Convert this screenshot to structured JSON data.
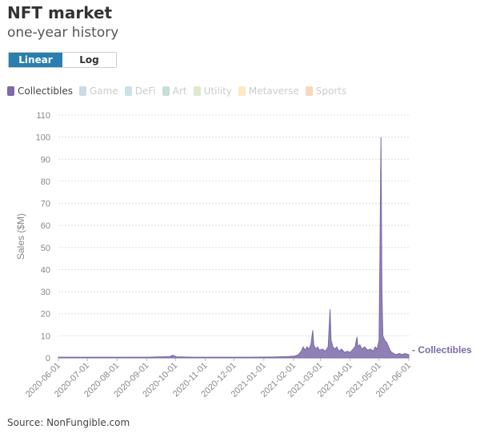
{
  "header": {
    "title": "NFT market",
    "subtitle": "one-year history"
  },
  "scale_toggle": {
    "options": [
      "Linear",
      "Log"
    ],
    "selected": "Linear"
  },
  "source": "Source: NonFungible.com",
  "chart_data": {
    "type": "area",
    "title": "NFT market",
    "subtitle": "one-year history",
    "ylabel": "Sales ($M)",
    "xlabel": "",
    "ylim": [
      0,
      110
    ],
    "yticks": [
      0,
      10,
      20,
      30,
      40,
      50,
      60,
      70,
      80,
      90,
      100,
      110
    ],
    "xlim": [
      "2020-06-01",
      "2021-06-01"
    ],
    "xticks": [
      "2020-06-01",
      "2020-07-01",
      "2020-08-01",
      "2020-09-01",
      "2020-10-01",
      "2020-11-01",
      "2020-12-01",
      "2021-01-01",
      "2021-02-01",
      "2021-03-01",
      "2021-04-01",
      "2021-05-01",
      "2021-06-01"
    ],
    "grid": true,
    "legend": {
      "placement": "top-left",
      "entries": [
        {
          "name": "Collectibles",
          "color": "#7b6aa8",
          "active": true
        },
        {
          "name": "Game",
          "color": "#c9dbe8",
          "active": false
        },
        {
          "name": "DeFi",
          "color": "#c9e3e6",
          "active": false
        },
        {
          "name": "Art",
          "color": "#c6dfd8",
          "active": false
        },
        {
          "name": "Utility",
          "color": "#dfe9d0",
          "active": false
        },
        {
          "name": "Metaverse",
          "color": "#fbe9c4",
          "active": false
        },
        {
          "name": "Sports",
          "color": "#f8d8bd",
          "active": false
        }
      ]
    },
    "series": [
      {
        "name": "Collectibles",
        "color": "#7b6aa8",
        "points": [
          [
            "2020-06-01",
            0.3
          ],
          [
            "2020-07-01",
            0.3
          ],
          [
            "2020-08-01",
            0.3
          ],
          [
            "2020-09-01",
            0.3
          ],
          [
            "2020-09-25",
            0.6
          ],
          [
            "2020-09-28",
            1.2
          ],
          [
            "2020-10-02",
            0.5
          ],
          [
            "2020-10-20",
            0.3
          ],
          [
            "2020-11-15",
            0.3
          ],
          [
            "2020-12-15",
            0.3
          ],
          [
            "2021-01-10",
            0.4
          ],
          [
            "2021-01-25",
            0.6
          ],
          [
            "2021-02-02",
            0.8
          ],
          [
            "2021-02-06",
            1.5
          ],
          [
            "2021-02-09",
            3
          ],
          [
            "2021-02-11",
            5
          ],
          [
            "2021-02-13",
            3.5
          ],
          [
            "2021-02-15",
            5
          ],
          [
            "2021-02-17",
            4
          ],
          [
            "2021-02-19",
            6
          ],
          [
            "2021-02-21",
            12.5
          ],
          [
            "2021-02-22",
            6
          ],
          [
            "2021-02-24",
            4
          ],
          [
            "2021-02-26",
            5
          ],
          [
            "2021-02-28",
            3.5
          ],
          [
            "2021-03-03",
            4
          ],
          [
            "2021-03-06",
            3
          ],
          [
            "2021-03-09",
            5
          ],
          [
            "2021-03-11",
            22
          ],
          [
            "2021-03-12",
            8
          ],
          [
            "2021-03-14",
            5
          ],
          [
            "2021-03-16",
            4
          ],
          [
            "2021-03-18",
            5
          ],
          [
            "2021-03-20",
            3
          ],
          [
            "2021-03-23",
            4
          ],
          [
            "2021-03-26",
            2.5
          ],
          [
            "2021-03-29",
            3
          ],
          [
            "2021-04-01",
            2.5
          ],
          [
            "2021-04-04",
            4
          ],
          [
            "2021-04-06",
            5
          ],
          [
            "2021-04-08",
            9.5
          ],
          [
            "2021-04-09",
            5
          ],
          [
            "2021-04-11",
            6
          ],
          [
            "2021-04-13",
            4
          ],
          [
            "2021-04-16",
            5
          ],
          [
            "2021-04-19",
            3.5
          ],
          [
            "2021-04-22",
            4
          ],
          [
            "2021-04-25",
            3
          ],
          [
            "2021-04-27",
            5
          ],
          [
            "2021-04-29",
            4
          ],
          [
            "2021-05-01",
            8
          ],
          [
            "2021-05-02",
            50
          ],
          [
            "2021-05-03",
            100
          ],
          [
            "2021-05-04",
            30
          ],
          [
            "2021-05-05",
            10
          ],
          [
            "2021-05-07",
            8
          ],
          [
            "2021-05-09",
            7
          ],
          [
            "2021-05-11",
            5
          ],
          [
            "2021-05-13",
            3
          ],
          [
            "2021-05-16",
            2
          ],
          [
            "2021-05-19",
            1.5
          ],
          [
            "2021-05-22",
            2
          ],
          [
            "2021-05-25",
            1.5
          ],
          [
            "2021-05-28",
            2
          ],
          [
            "2021-06-01",
            1.5
          ]
        ]
      }
    ]
  }
}
